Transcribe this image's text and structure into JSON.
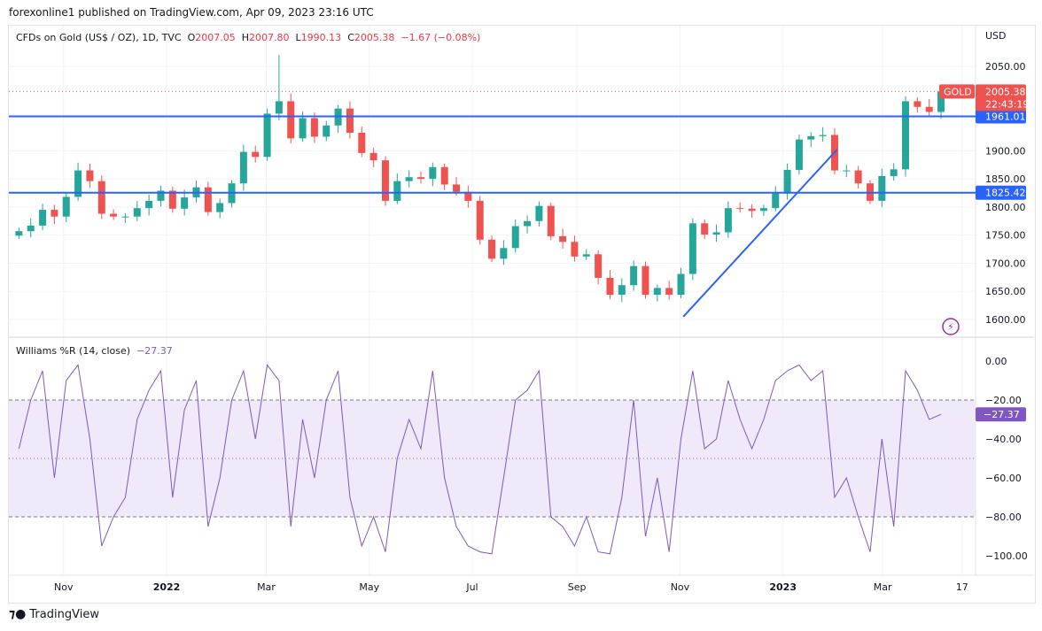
{
  "header": {
    "published": "forexonline1 published on TradingView.com, Apr 09, 2023 23:16 UTC"
  },
  "legend": {
    "symbol": "CFDs on Gold (US$ / OZ), 1D, TVC",
    "o_label": "O",
    "o": "2007.05",
    "h_label": "H",
    "h": "2007.80",
    "l_label": "L",
    "l": "1990.13",
    "c_label": "C",
    "c": "2005.38",
    "change": "−1.67 (−0.08%)"
  },
  "currency": "USD",
  "brand": "TradingView",
  "colors": {
    "up": "#26a69a",
    "down": "#ef5350",
    "level": "#2962ff",
    "trend": "#2962ff",
    "wr": "#7e57c2",
    "wr_band": "#efe9f9"
  },
  "chart_data": [
    {
      "type": "candlestick",
      "ylim": [
        1570,
        2100
      ],
      "grid": true,
      "y_ticks": [
        {
          "v": 2050,
          "label": "2050.00"
        },
        {
          "v": 1900,
          "label": "1900.00"
        },
        {
          "v": 1850,
          "label": "1850.00"
        },
        {
          "v": 1800,
          "label": "1800.00"
        },
        {
          "v": 1750,
          "label": "1750.00"
        },
        {
          "v": 1700,
          "label": "1700.00"
        },
        {
          "v": 1650,
          "label": "1650.00"
        },
        {
          "v": 1600,
          "label": "1600.00"
        }
      ],
      "x_ticks": [
        {
          "d": "2021-11-01",
          "label": "Nov"
        },
        {
          "d": "2022-01-01",
          "label": "2022"
        },
        {
          "d": "2022-03-01",
          "label": "Mar"
        },
        {
          "d": "2022-05-01",
          "label": "May"
        },
        {
          "d": "2022-07-01",
          "label": "Jul"
        },
        {
          "d": "2022-09-01",
          "label": "Sep"
        },
        {
          "d": "2022-11-01",
          "label": "Nov"
        },
        {
          "d": "2023-01-01",
          "label": "2023"
        },
        {
          "d": "2023-03-01",
          "label": "Mar"
        },
        {
          "d": "2023-04-17",
          "label": "17"
        }
      ],
      "closes": [
        [
          "2021-10-04",
          1757
        ],
        [
          "2021-10-11",
          1767
        ],
        [
          "2021-10-18",
          1795
        ],
        [
          "2021-10-25",
          1783
        ],
        [
          "2021-11-01",
          1818
        ],
        [
          "2021-11-08",
          1865
        ],
        [
          "2021-11-15",
          1846
        ],
        [
          "2021-11-22",
          1788
        ],
        [
          "2021-11-29",
          1783
        ],
        [
          "2021-12-06",
          1783
        ],
        [
          "2021-12-13",
          1798
        ],
        [
          "2021-12-20",
          1811
        ],
        [
          "2021-12-27",
          1829
        ],
        [
          "2022-01-03",
          1797
        ],
        [
          "2022-01-10",
          1817
        ],
        [
          "2022-01-17",
          1835
        ],
        [
          "2022-01-24",
          1791
        ],
        [
          "2022-01-31",
          1807
        ],
        [
          "2022-02-07",
          1842
        ],
        [
          "2022-02-14",
          1898
        ],
        [
          "2022-02-21",
          1889
        ],
        [
          "2022-02-28",
          1966
        ],
        [
          "2022-03-07",
          1988
        ],
        [
          "2022-03-14",
          1922
        ],
        [
          "2022-03-21",
          1958
        ],
        [
          "2022-03-28",
          1925
        ],
        [
          "2022-04-04",
          1945
        ],
        [
          "2022-04-11",
          1975
        ],
        [
          "2022-04-18",
          1932
        ],
        [
          "2022-04-25",
          1896
        ],
        [
          "2022-05-02",
          1883
        ],
        [
          "2022-05-09",
          1811
        ],
        [
          "2022-05-16",
          1846
        ],
        [
          "2022-05-23",
          1853
        ],
        [
          "2022-05-30",
          1850
        ],
        [
          "2022-06-06",
          1871
        ],
        [
          "2022-06-13",
          1840
        ],
        [
          "2022-06-20",
          1827
        ],
        [
          "2022-06-27",
          1811
        ],
        [
          "2022-07-04",
          1742
        ],
        [
          "2022-07-11",
          1708
        ],
        [
          "2022-07-18",
          1727
        ],
        [
          "2022-07-25",
          1766
        ],
        [
          "2022-08-01",
          1775
        ],
        [
          "2022-08-08",
          1802
        ],
        [
          "2022-08-15",
          1748
        ],
        [
          "2022-08-22",
          1738
        ],
        [
          "2022-08-29",
          1712
        ],
        [
          "2022-09-05",
          1716
        ],
        [
          "2022-09-12",
          1674
        ],
        [
          "2022-09-19",
          1644
        ],
        [
          "2022-09-26",
          1661
        ],
        [
          "2022-10-03",
          1695
        ],
        [
          "2022-10-10",
          1644
        ],
        [
          "2022-10-17",
          1656
        ],
        [
          "2022-10-24",
          1644
        ],
        [
          "2022-10-31",
          1681
        ],
        [
          "2022-11-07",
          1771
        ],
        [
          "2022-11-14",
          1751
        ],
        [
          "2022-11-21",
          1755
        ],
        [
          "2022-11-28",
          1798
        ],
        [
          "2022-12-05",
          1797
        ],
        [
          "2022-12-12",
          1793
        ],
        [
          "2022-12-19",
          1798
        ],
        [
          "2022-12-26",
          1824
        ],
        [
          "2023-01-02",
          1866
        ],
        [
          "2023-01-09",
          1920
        ],
        [
          "2023-01-16",
          1926
        ],
        [
          "2023-01-23",
          1928
        ],
        [
          "2023-01-30",
          1865
        ],
        [
          "2023-02-06",
          1865
        ],
        [
          "2023-02-13",
          1842
        ],
        [
          "2023-02-20",
          1811
        ],
        [
          "2023-02-27",
          1855
        ],
        [
          "2023-03-06",
          1867
        ],
        [
          "2023-03-13",
          1988
        ],
        [
          "2023-03-20",
          1978
        ],
        [
          "2023-03-27",
          1969
        ],
        [
          "2023-04-03",
          2005.38
        ]
      ],
      "levels": [
        {
          "v": 1961.01,
          "label": "1961.01"
        },
        {
          "v": 1825.42,
          "label": "1825.42"
        }
      ],
      "trendline": {
        "from": [
          "2022-11-03",
          1605
        ],
        "to": [
          "2023-02-02",
          1902
        ]
      },
      "last_price": {
        "symbol": "GOLD",
        "v": 2005.38,
        "label": "2005.38",
        "countdown": "22:43:19"
      }
    },
    {
      "type": "line",
      "title": "Williams %R (14, close)",
      "last": "−27.37",
      "last_v": -27.37,
      "ylim": [
        -105,
        5
      ],
      "y_ticks": [
        {
          "v": 0,
          "label": "0.00"
        },
        {
          "v": -20,
          "label": "−20.00"
        },
        {
          "v": -40,
          "label": "−40.00"
        },
        {
          "v": -60,
          "label": "−60.00"
        },
        {
          "v": -80,
          "label": "−80.00"
        },
        {
          "v": -100,
          "label": "−100.00"
        }
      ],
      "bands": [
        -20,
        -50,
        -80
      ],
      "values": [
        -45,
        -20,
        -5,
        -60,
        -10,
        -2,
        -40,
        -95,
        -80,
        -70,
        -30,
        -15,
        -5,
        -70,
        -25,
        -10,
        -85,
        -60,
        -20,
        -5,
        -40,
        -2,
        -10,
        -85,
        -30,
        -60,
        -20,
        -5,
        -70,
        -95,
        -80,
        -98,
        -50,
        -30,
        -45,
        -5,
        -60,
        -85,
        -95,
        -98,
        -99,
        -60,
        -20,
        -15,
        -5,
        -80,
        -85,
        -95,
        -80,
        -98,
        -99,
        -70,
        -20,
        -90,
        -60,
        -98,
        -40,
        -5,
        -45,
        -40,
        -10,
        -30,
        -45,
        -30,
        -10,
        -5,
        -2,
        -10,
        -5,
        -70,
        -60,
        -80,
        -98,
        -40,
        -85,
        -5,
        -15,
        -30,
        -27.37
      ]
    }
  ]
}
